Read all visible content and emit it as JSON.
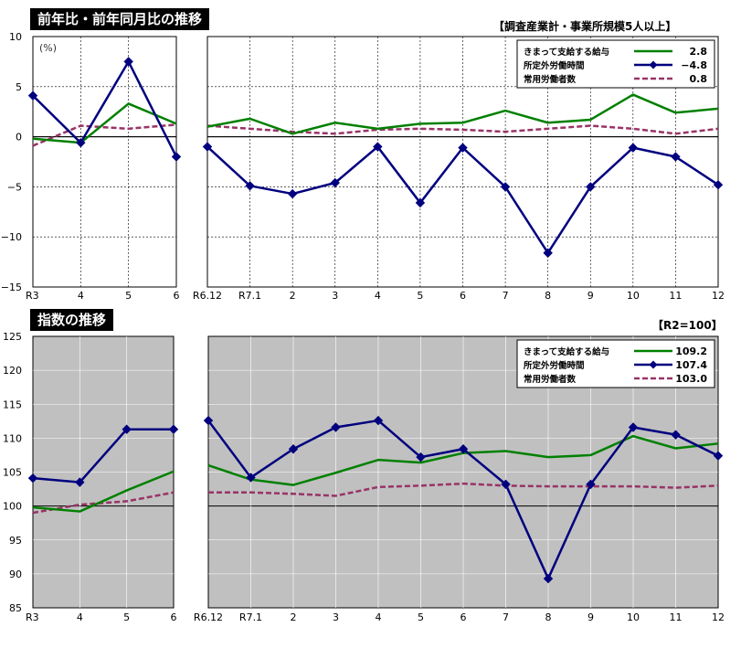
{
  "colors": {
    "green": "#008000",
    "navy": "#00007f",
    "pink": "#993366",
    "gray_bg": "#c0c0c0"
  },
  "chart_data": [
    {
      "type": "line",
      "title": "前年比・前年同月比の推移",
      "note": "【調査産業計・事業所規模5人以上】",
      "unit_label": "(%)",
      "ylim": [
        -15,
        10
      ],
      "yticks": [
        "10",
        "5",
        "0",
        "−5",
        "−10",
        "−15"
      ],
      "left_panel": {
        "categories": [
          "R3",
          "4",
          "5",
          "6"
        ],
        "series": [
          {
            "name": "きまって支給する給与",
            "values": [
              -0.2,
              -0.6,
              3.3,
              1.3
            ]
          },
          {
            "name": "所定外労働時間",
            "values": [
              4.1,
              -0.6,
              7.5,
              -2.0
            ]
          },
          {
            "name": "常用労働者数",
            "values": [
              -0.9,
              1.1,
              0.8,
              1.2
            ]
          }
        ]
      },
      "right_panel": {
        "categories": [
          "R6.12",
          "R7.1",
          "2",
          "3",
          "4",
          "5",
          "6",
          "7",
          "8",
          "9",
          "10",
          "11",
          "12"
        ],
        "series": [
          {
            "name": "きまって支給する給与",
            "values": [
              1.0,
              1.8,
              0.3,
              1.4,
              0.8,
              1.3,
              1.4,
              2.6,
              1.4,
              1.7,
              4.2,
              2.4,
              2.8
            ]
          },
          {
            "name": "所定外労働時間",
            "values": [
              -1.0,
              -4.9,
              -5.7,
              -4.6,
              -1.0,
              -6.6,
              -1.1,
              -5.0,
              -11.6,
              -5.0,
              -1.1,
              -2.0,
              -4.8
            ]
          },
          {
            "name": "常用労働者数",
            "values": [
              1.1,
              0.8,
              0.5,
              0.3,
              0.7,
              0.8,
              0.7,
              0.5,
              0.8,
              1.1,
              0.8,
              0.3,
              0.8
            ]
          }
        ]
      },
      "legend": [
        {
          "label": "きまって支給する給与",
          "value": "2.8",
          "style": "solid-green"
        },
        {
          "label": "所定外労働時間",
          "value": "−4.8",
          "style": "navy-diamond"
        },
        {
          "label": "常用労働者数",
          "value": "0.8",
          "style": "pink-dash"
        }
      ]
    },
    {
      "type": "line",
      "title": "指数の推移",
      "note": "【R2=100】",
      "ylim": [
        85,
        125
      ],
      "yticks": [
        "125",
        "120",
        "115",
        "110",
        "105",
        "100",
        "95",
        "90",
        "85"
      ],
      "left_panel": {
        "categories": [
          "R3",
          "4",
          "5",
          "6"
        ],
        "series": [
          {
            "name": "きまって支給する給与",
            "values": [
              99.8,
              99.2,
              102.3,
              105.1
            ]
          },
          {
            "name": "所定外労働時間",
            "values": [
              104.1,
              103.5,
              111.3,
              111.3
            ]
          },
          {
            "name": "常用労働者数",
            "values": [
              99.0,
              100.2,
              100.7,
              102.0
            ]
          }
        ]
      },
      "right_panel": {
        "categories": [
          "R6.12",
          "R7.1",
          "2",
          "3",
          "4",
          "5",
          "6",
          "7",
          "8",
          "9",
          "10",
          "11",
          "12"
        ],
        "series": [
          {
            "name": "きまって支給する給与",
            "values": [
              106.0,
              103.9,
              103.1,
              104.9,
              106.8,
              106.4,
              107.8,
              108.1,
              107.2,
              107.5,
              110.3,
              108.5,
              109.2
            ]
          },
          {
            "name": "所定外労働時間",
            "values": [
              112.6,
              104.2,
              108.4,
              111.6,
              112.6,
              107.2,
              108.4,
              103.2,
              89.3,
              103.2,
              111.6,
              110.5,
              107.4
            ]
          },
          {
            "name": "常用労働者数",
            "values": [
              102.0,
              102.0,
              101.8,
              101.5,
              102.8,
              103.0,
              103.3,
              103.0,
              102.9,
              102.9,
              102.9,
              102.7,
              103.0
            ]
          }
        ]
      },
      "legend": [
        {
          "label": "きまって支給する給与",
          "value": "109.2",
          "style": "solid-green"
        },
        {
          "label": "所定外労働時間",
          "value": "107.4",
          "style": "navy-diamond"
        },
        {
          "label": "常用労働者数",
          "value": "103.0",
          "style": "pink-dash"
        }
      ]
    }
  ]
}
